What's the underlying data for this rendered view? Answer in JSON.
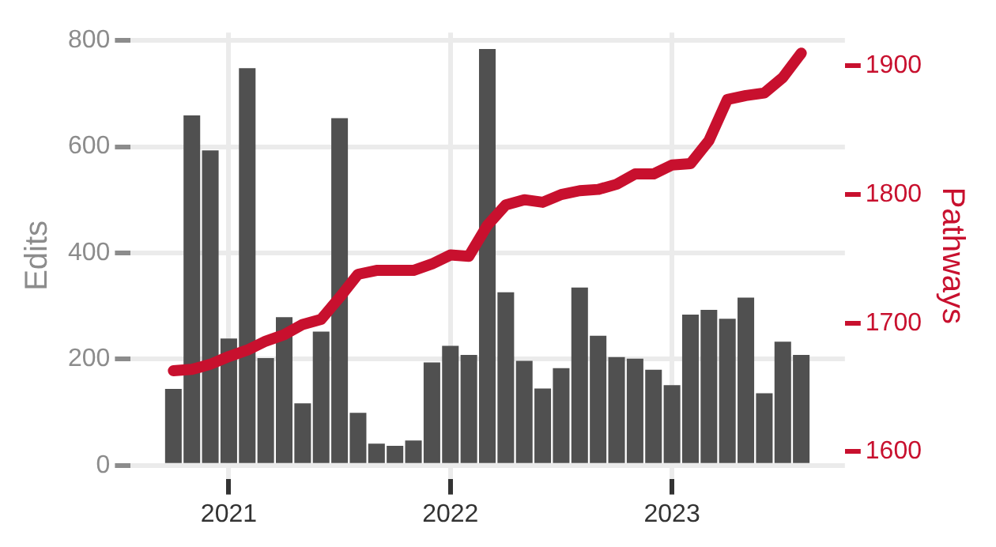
{
  "chart_data": {
    "type": "bar",
    "ylabel": "Edits",
    "y2label": "Pathways",
    "x": [
      "2020-10",
      "2020-11",
      "2020-12",
      "2021-01",
      "2021-02",
      "2021-03",
      "2021-04",
      "2021-05",
      "2021-06",
      "2021-07",
      "2021-08",
      "2021-09",
      "2021-10",
      "2021-11",
      "2021-12",
      "2022-01",
      "2022-02",
      "2022-03",
      "2022-04",
      "2022-05",
      "2022-06",
      "2022-07",
      "2022-08",
      "2022-09",
      "2022-10",
      "2022-11",
      "2022-12",
      "2023-01",
      "2023-02",
      "2023-03",
      "2023-04",
      "2023-05",
      "2023-06",
      "2023-07",
      "2023-08"
    ],
    "series": [
      {
        "color": "#505050",
        "values": [
          144,
          659,
          593,
          239,
          748,
          202,
          279,
          117,
          252,
          654,
          99,
          41,
          37,
          47,
          194,
          225,
          208,
          784,
          326,
          197,
          145,
          183,
          335,
          244,
          204,
          201,
          180,
          151,
          284,
          293,
          276,
          316,
          136,
          233,
          208
        ]
      },
      {
        "type": "line",
        "axis": "y2",
        "color": "#c8102e",
        "values": [
          1663,
          1664,
          1668,
          1674,
          1679,
          1686,
          1691,
          1699,
          1703,
          1720,
          1738,
          1741,
          1741,
          1741,
          1746,
          1753,
          1752,
          1776,
          1792,
          1796,
          1794,
          1800,
          1803,
          1804,
          1808,
          1816,
          1816,
          1823,
          1824,
          1842,
          1874,
          1877,
          1879,
          1891,
          1910
        ]
      }
    ],
    "xlim": [
      "2020-07-22",
      "2023-10-12"
    ],
    "xticks": [
      "2021",
      "2022",
      "2023"
    ],
    "ylim": [
      -25,
      815
    ],
    "yticks": [
      0,
      200,
      400,
      600,
      800
    ],
    "y2lim": [
      1579,
      1926
    ],
    "y2ticks": [
      1600,
      1700,
      1800,
      1900
    ],
    "grid": true,
    "marker": "none"
  }
}
